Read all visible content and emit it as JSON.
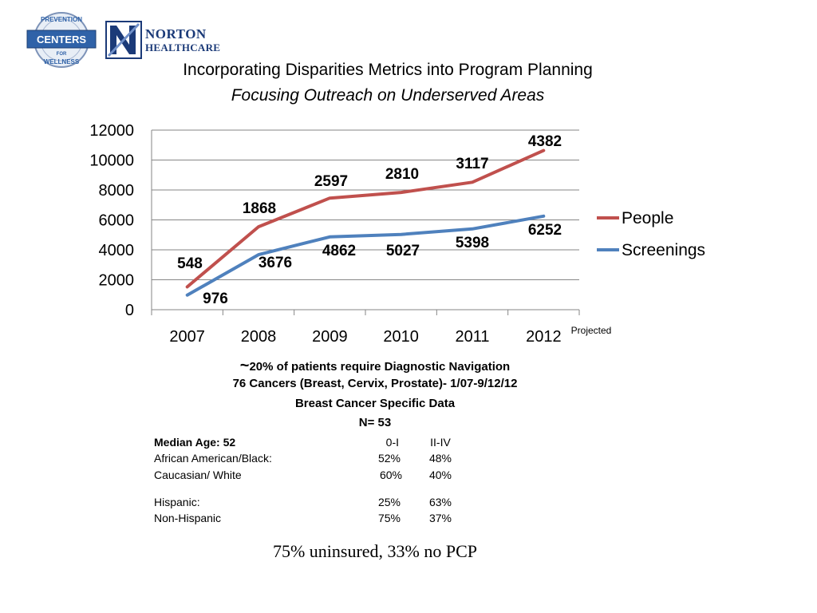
{
  "title": "Incorporating Disparities Metrics into Program Planning",
  "subtitle": "Focusing Outreach on Underserved Areas",
  "logos": {
    "pfw": {
      "lines": [
        "PREVENTION",
        "CENTERS",
        "FOR",
        "WELLNESS"
      ]
    },
    "norton": {
      "line1": "NORTON",
      "line2": "HEALTHCARE"
    }
  },
  "colors": {
    "people": "#c0504d",
    "screenings": "#4f81bd",
    "axis": "#868686"
  },
  "chart_data": {
    "type": "line",
    "categories": [
      "2007",
      "2008",
      "2009",
      "2010",
      "2011",
      "2012"
    ],
    "category_note": "Projected",
    "ylim": [
      0,
      12000
    ],
    "yticks": [
      0,
      2000,
      4000,
      6000,
      8000,
      10000,
      12000
    ],
    "legend_position": "right",
    "series": [
      {
        "name": "People",
        "values": [
          1524,
          5544,
          7458,
          7837,
          8515,
          10634
        ],
        "labels": [
          "548",
          "1868",
          "2597",
          "2810",
          "3117",
          "4382"
        ]
      },
      {
        "name": "Screenings",
        "values": [
          976,
          3676,
          4862,
          5027,
          5398,
          6252
        ],
        "labels": [
          "976",
          "3676",
          "4862",
          "5027",
          "5398",
          "6252"
        ]
      }
    ]
  },
  "notes": {
    "line1_prefix": "~",
    "line1": "20% of patients require Diagnostic Navigation",
    "line2": "76 Cancers (Breast, Cervix, Prostate)- 1/07-9/12/12",
    "line3": "Breast Cancer Specific Data",
    "line4": "N= 53"
  },
  "table": {
    "header": {
      "label": "Median Age: 52",
      "a": "0-I",
      "b": "II-IV"
    },
    "rows": [
      {
        "label": "African American/Black:",
        "a": "52%",
        "b": "48%"
      },
      {
        "label": "Caucasian/ White",
        "a": "60%",
        "b": "40%"
      },
      {
        "label": "Hispanic:",
        "a": "25%",
        "b": "63%"
      },
      {
        "label": "Non-Hispanic",
        "a": "75%",
        "b": "37%"
      }
    ]
  },
  "footer": "75% uninsured, 33% no PCP"
}
